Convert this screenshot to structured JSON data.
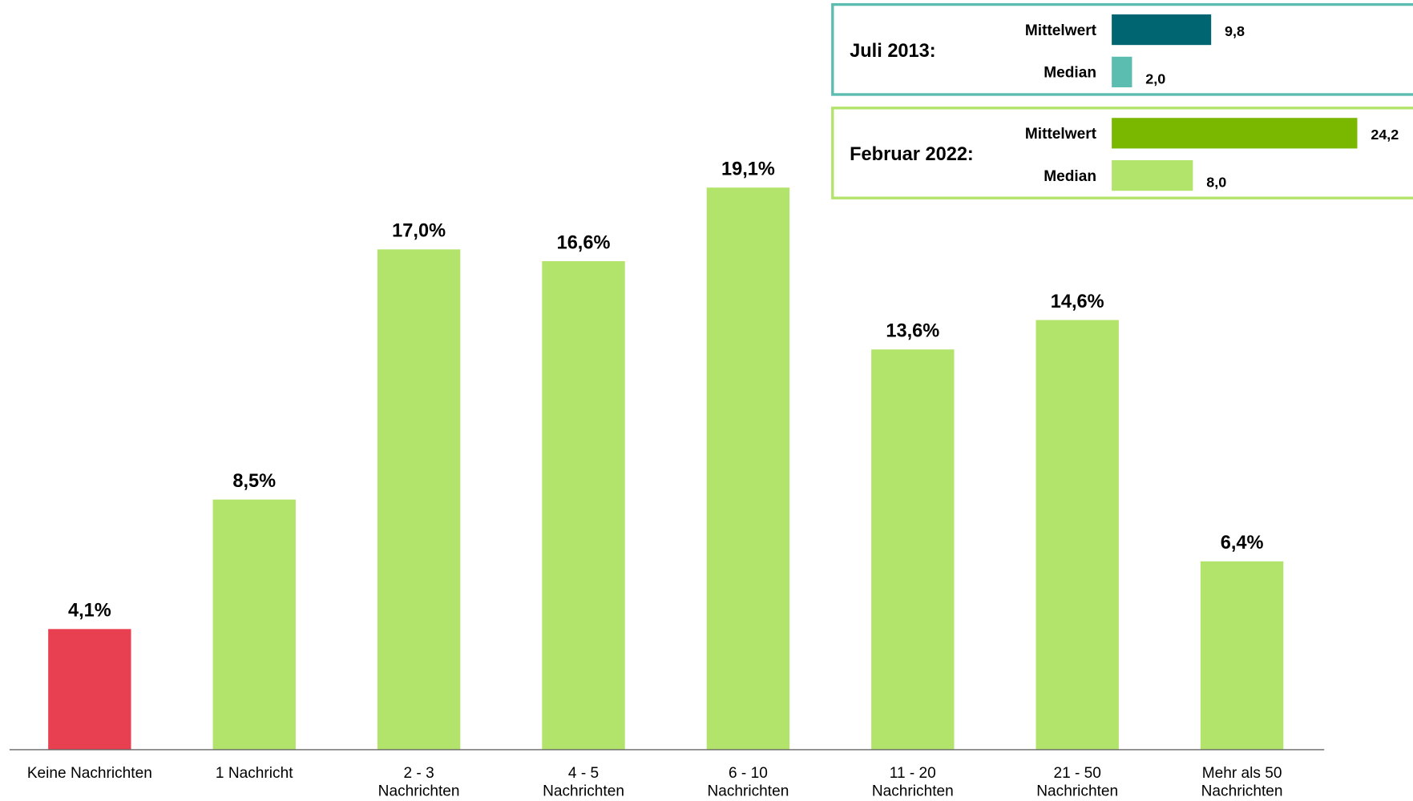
{
  "chart_data": [
    {
      "type": "bar",
      "categories": [
        "Keine Nachrichten",
        "1 Nachricht",
        "2 - 3\nNachrichten",
        "4 - 5\nNachrichten",
        "6 - 10\nNachrichten",
        "11 - 20\nNachrichten",
        "21 - 50\nNachrichten",
        "Mehr als 50\nNachrichten"
      ],
      "values": [
        4.1,
        8.5,
        17.0,
        16.6,
        19.1,
        13.6,
        14.6,
        6.4
      ],
      "value_labels": [
        "4,1%",
        "8,5%",
        "17,0%",
        "16,6%",
        "19,1%",
        "13,6%",
        "14,6%",
        "6,4%"
      ],
      "colors": [
        "#e84050",
        "#b2e36a",
        "#b2e36a",
        "#b2e36a",
        "#b2e36a",
        "#b2e36a",
        "#b2e36a",
        "#b2e36a"
      ],
      "ylim": [
        0,
        20
      ]
    },
    {
      "type": "hbar",
      "title": "Juli 2013:",
      "categories": [
        "Mittelwert",
        "Median"
      ],
      "values": [
        9.8,
        2.0
      ],
      "value_labels": [
        "9,8",
        "2,0"
      ],
      "colors": [
        "#006570",
        "#5bbcb0"
      ],
      "border_color": "#5bbcb0",
      "xlim": [
        0,
        30
      ]
    },
    {
      "type": "hbar",
      "title": "Februar 2022:",
      "categories": [
        "Mittelwert",
        "Median"
      ],
      "values": [
        24.2,
        8.0
      ],
      "value_labels": [
        "24,2",
        "8,0"
      ],
      "colors": [
        "#7ab800",
        "#b2e36a"
      ],
      "border_color": "#b2e36a",
      "xlim": [
        0,
        30
      ]
    }
  ]
}
